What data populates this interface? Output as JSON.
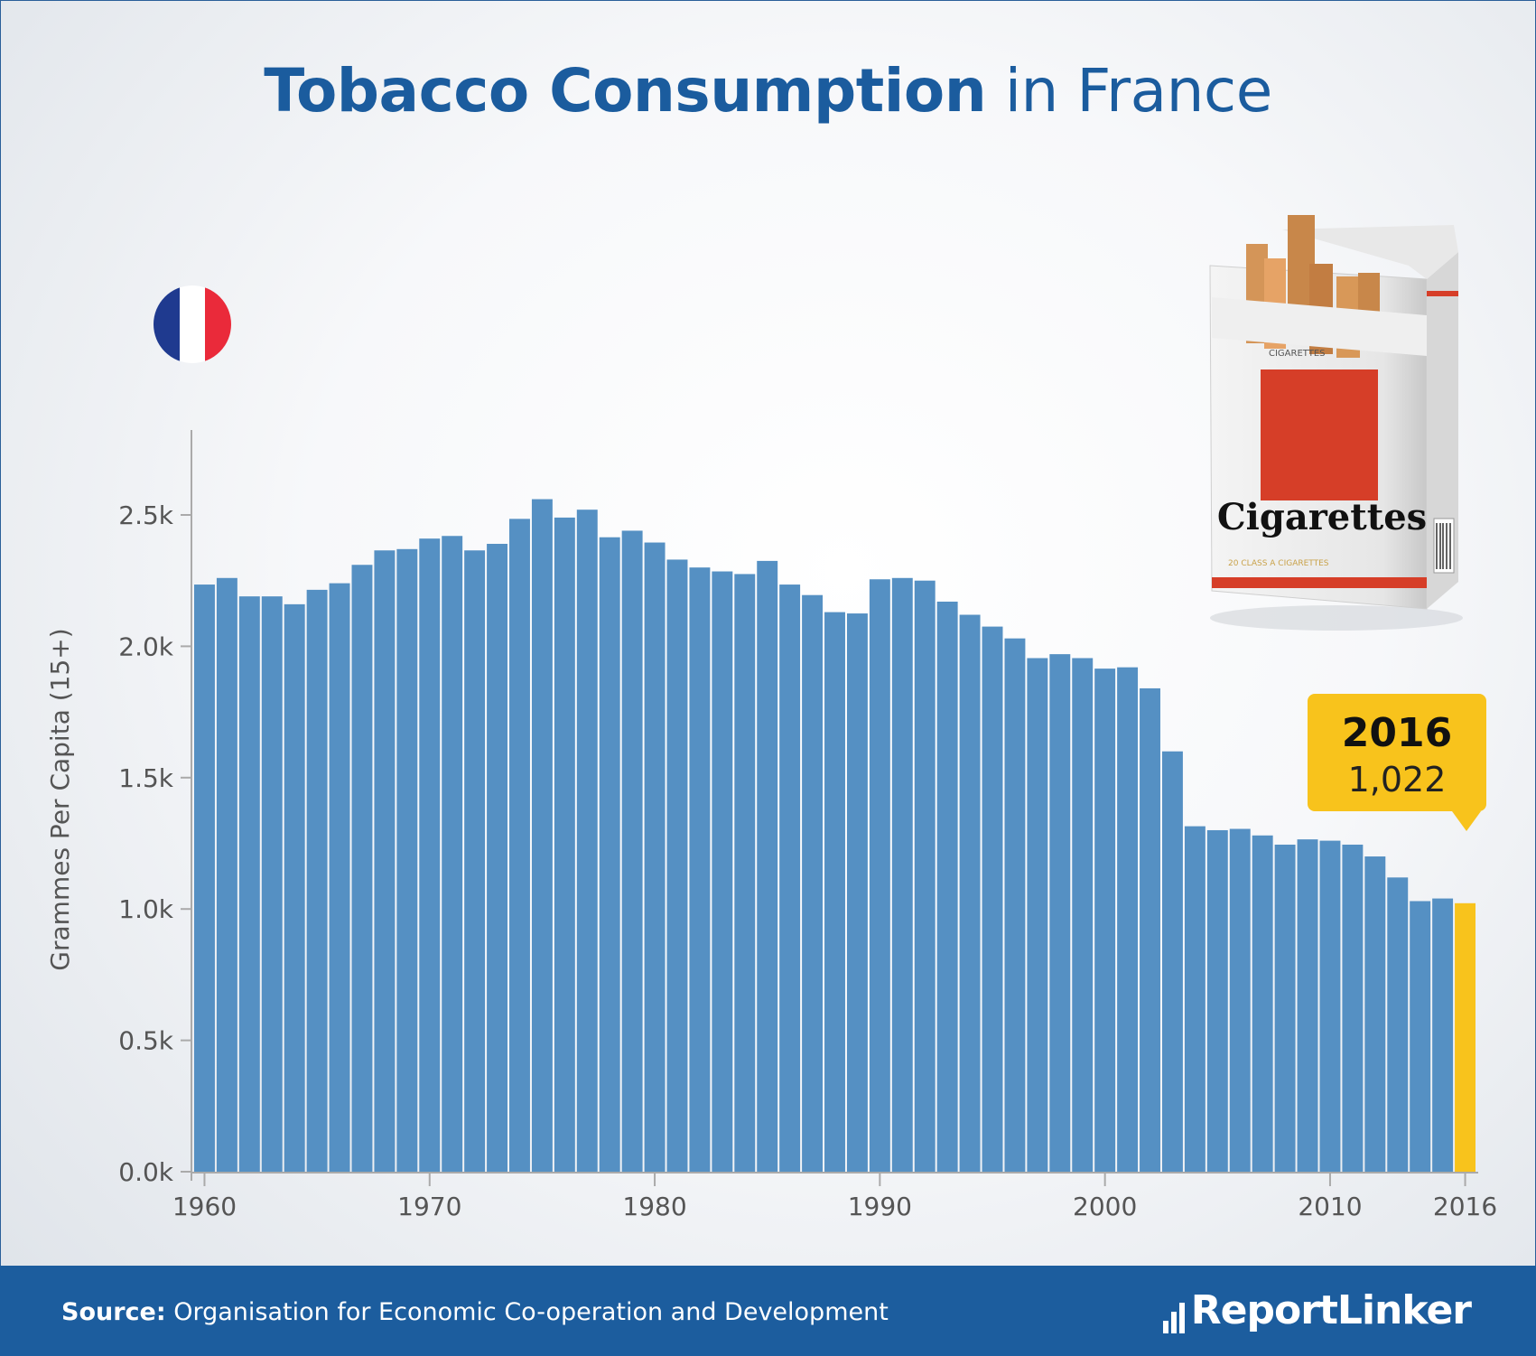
{
  "title": {
    "bold": "Tobacco Consumption",
    "light": "in France"
  },
  "callout": {
    "year": "2016",
    "value": "1,022"
  },
  "footer": {
    "source_label": "Source:",
    "source_text": "Organisation for Economic Co-operation and Development",
    "logo": "ReportLinker"
  },
  "colors": {
    "bar": "#5590c3",
    "highlight": "#f8c31c",
    "title": "#1b5c9e",
    "footer": "#1c5d9e"
  },
  "icons": [
    "france-flag-icon",
    "cigarette-pack-image",
    "reportlinker-logo-icon"
  ],
  "image_text": {
    "pack_brand": "Cigarettes",
    "pack_top": "CIGARETTES",
    "pack_bottom": "20 CLASS A CIGARETTES"
  },
  "chart_data": {
    "type": "bar",
    "title": "Tobacco Consumption in France",
    "xlabel": "",
    "ylabel": "Grammes Per Capita (15+)",
    "ylim": [
      0,
      2800
    ],
    "yticks": [
      0,
      500,
      1000,
      1500,
      2000,
      2500
    ],
    "ytick_labels": [
      "0.0k",
      "0.5k",
      "1.0k",
      "1.5k",
      "2.0k",
      "2.5k"
    ],
    "xtick_labels": [
      "1960",
      "1970",
      "1980",
      "1990",
      "2000",
      "2010",
      "2016"
    ],
    "grid": false,
    "legend": "none",
    "highlight": {
      "category": "2016",
      "value": 1022
    },
    "categories": [
      "1960",
      "1961",
      "1962",
      "1963",
      "1964",
      "1965",
      "1966",
      "1967",
      "1968",
      "1969",
      "1970",
      "1971",
      "1972",
      "1973",
      "1974",
      "1975",
      "1976",
      "1977",
      "1978",
      "1979",
      "1980",
      "1981",
      "1982",
      "1983",
      "1984",
      "1985",
      "1986",
      "1987",
      "1988",
      "1989",
      "1990",
      "1991",
      "1992",
      "1993",
      "1994",
      "1995",
      "1996",
      "1997",
      "1998",
      "1999",
      "2000",
      "2001",
      "2002",
      "2003",
      "2004",
      "2005",
      "2006",
      "2007",
      "2008",
      "2009",
      "2010",
      "2011",
      "2012",
      "2013",
      "2014",
      "2015",
      "2016"
    ],
    "values": [
      2235,
      2260,
      2190,
      2190,
      2160,
      2215,
      2240,
      2310,
      2365,
      2370,
      2410,
      2420,
      2365,
      2390,
      2485,
      2560,
      2490,
      2520,
      2415,
      2440,
      2395,
      2330,
      2300,
      2285,
      2275,
      2325,
      2235,
      2195,
      2130,
      2125,
      2255,
      2260,
      2250,
      2170,
      2120,
      2075,
      2030,
      1955,
      1970,
      1955,
      1915,
      1920,
      1840,
      1600,
      1315,
      1300,
      1305,
      1280,
      1245,
      1265,
      1260,
      1245,
      1200,
      1120,
      1030,
      1040,
      1022
    ]
  }
}
